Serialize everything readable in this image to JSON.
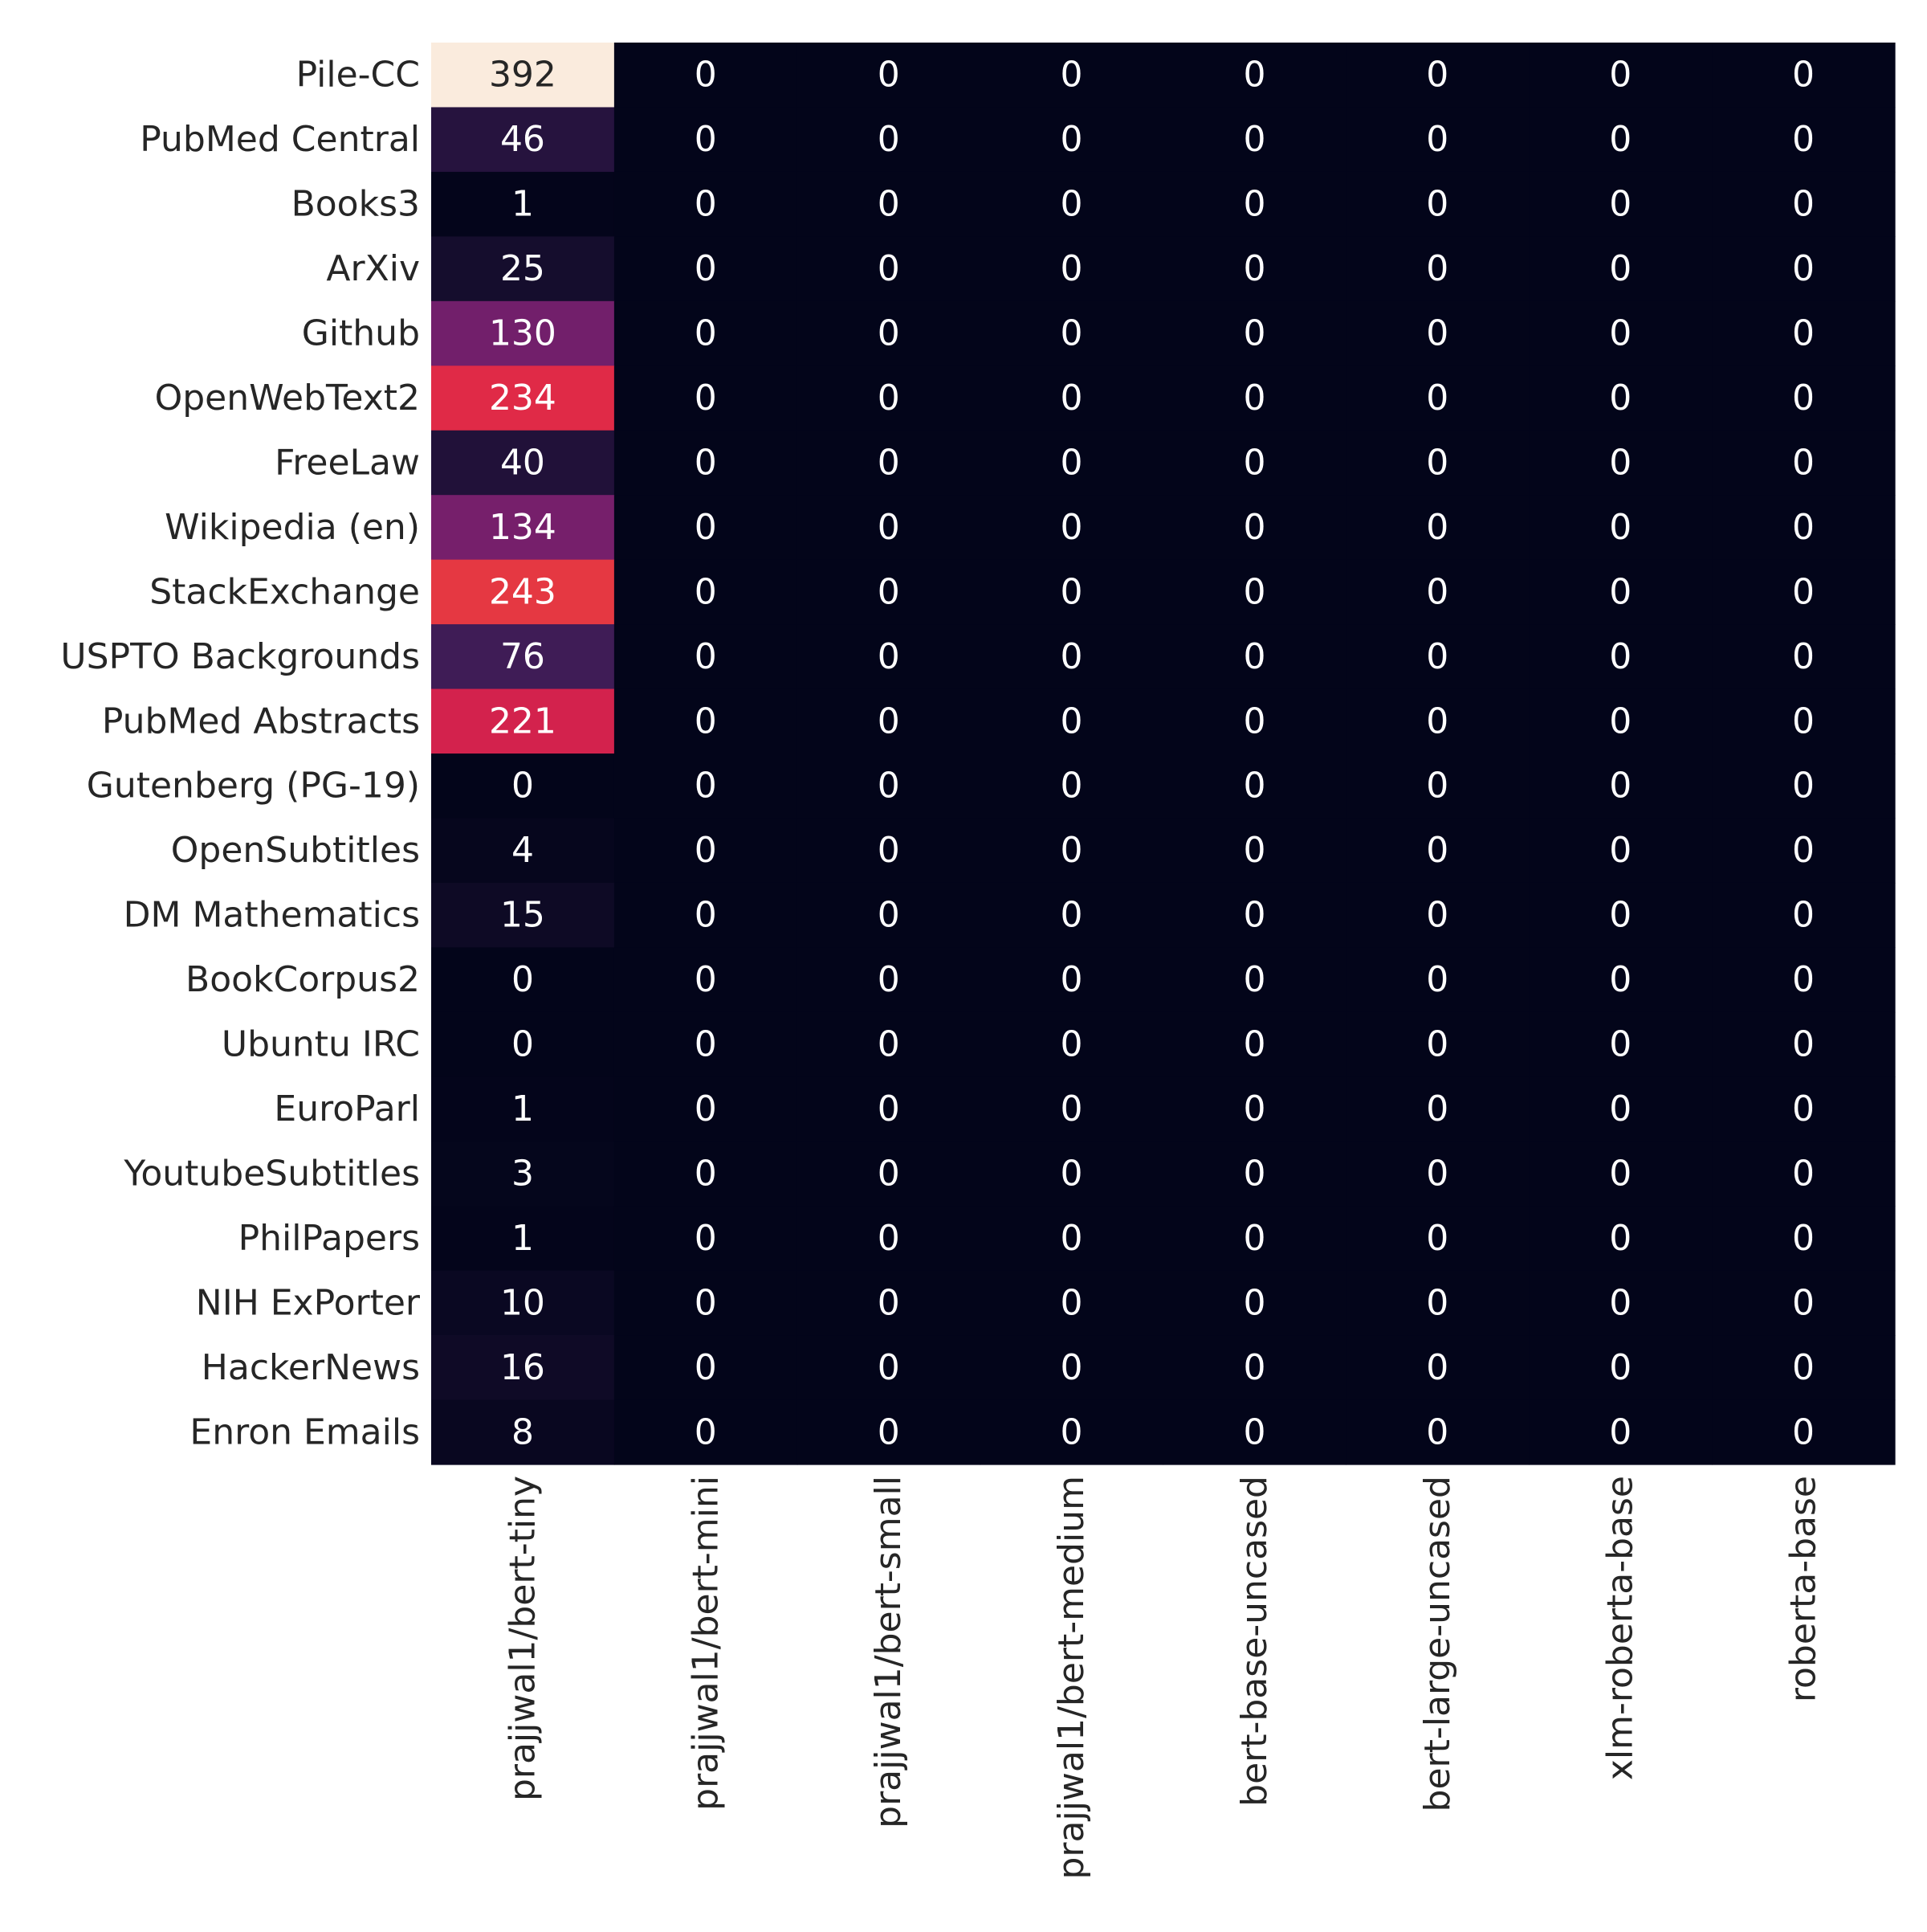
{
  "chart_data": {
    "type": "heatmap",
    "title": "",
    "xlabel": "",
    "ylabel": "",
    "colormap": "rocket",
    "colorbar": false,
    "value_range": [
      0,
      392
    ],
    "rows": [
      "Pile-CC",
      "PubMed Central",
      "Books3",
      "ArXiv",
      "Github",
      "OpenWebText2",
      "FreeLaw",
      "Wikipedia (en)",
      "StackExchange",
      "USPTO Backgrounds",
      "PubMed Abstracts",
      "Gutenberg (PG-19)",
      "OpenSubtitles",
      "DM Mathematics",
      "BookCorpus2",
      "Ubuntu IRC",
      "EuroParl",
      "YoutubeSubtitles",
      "PhilPapers",
      "NIH ExPorter",
      "HackerNews",
      "Enron Emails"
    ],
    "columns": [
      "prajjwal1/bert-tiny",
      "prajjwal1/bert-mini",
      "prajjwal1/bert-small",
      "prajjwal1/bert-medium",
      "bert-base-uncased",
      "bert-large-uncased",
      "xlm-roberta-base",
      "roberta-base"
    ],
    "values": [
      [
        392,
        0,
        0,
        0,
        0,
        0,
        0,
        0
      ],
      [
        46,
        0,
        0,
        0,
        0,
        0,
        0,
        0
      ],
      [
        1,
        0,
        0,
        0,
        0,
        0,
        0,
        0
      ],
      [
        25,
        0,
        0,
        0,
        0,
        0,
        0,
        0
      ],
      [
        130,
        0,
        0,
        0,
        0,
        0,
        0,
        0
      ],
      [
        234,
        0,
        0,
        0,
        0,
        0,
        0,
        0
      ],
      [
        40,
        0,
        0,
        0,
        0,
        0,
        0,
        0
      ],
      [
        134,
        0,
        0,
        0,
        0,
        0,
        0,
        0
      ],
      [
        243,
        0,
        0,
        0,
        0,
        0,
        0,
        0
      ],
      [
        76,
        0,
        0,
        0,
        0,
        0,
        0,
        0
      ],
      [
        221,
        0,
        0,
        0,
        0,
        0,
        0,
        0
      ],
      [
        0,
        0,
        0,
        0,
        0,
        0,
        0,
        0
      ],
      [
        4,
        0,
        0,
        0,
        0,
        0,
        0,
        0
      ],
      [
        15,
        0,
        0,
        0,
        0,
        0,
        0,
        0
      ],
      [
        0,
        0,
        0,
        0,
        0,
        0,
        0,
        0
      ],
      [
        0,
        0,
        0,
        0,
        0,
        0,
        0,
        0
      ],
      [
        1,
        0,
        0,
        0,
        0,
        0,
        0,
        0
      ],
      [
        3,
        0,
        0,
        0,
        0,
        0,
        0,
        0
      ],
      [
        1,
        0,
        0,
        0,
        0,
        0,
        0,
        0
      ],
      [
        10,
        0,
        0,
        0,
        0,
        0,
        0,
        0
      ],
      [
        16,
        0,
        0,
        0,
        0,
        0,
        0,
        0
      ],
      [
        8,
        0,
        0,
        0,
        0,
        0,
        0,
        0
      ]
    ]
  }
}
